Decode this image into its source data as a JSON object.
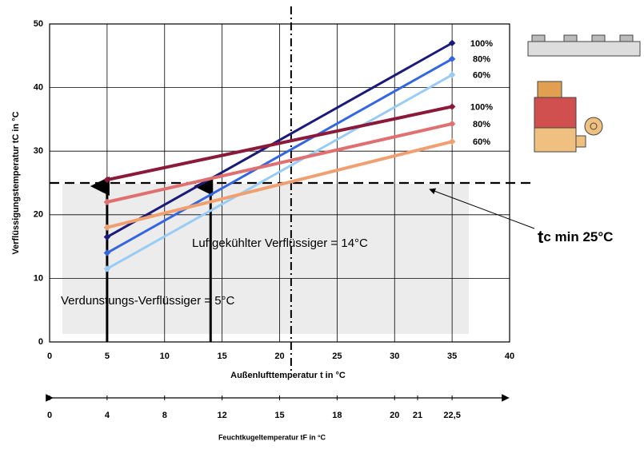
{
  "chart_data": {
    "type": "line",
    "y_label": "Verflüssigungstemperatur tC in °C",
    "x_label": "Außenlufttemperatur t in °C",
    "x": [
      5,
      35
    ],
    "series": [
      {
        "name": "100%",
        "color": "#1a1a7a",
        "values": [
          16.5,
          47
        ]
      },
      {
        "name": "80%",
        "color": "#3366e0",
        "values": [
          14,
          44.5
        ]
      },
      {
        "name": "60%",
        "color": "#99ccf5",
        "values": [
          11.5,
          42
        ]
      },
      {
        "name": "100%",
        "color": "#8b1a3a",
        "values": [
          25.5,
          37
        ]
      },
      {
        "name": "80%",
        "color": "#e07070",
        "values": [
          22,
          34.3
        ]
      },
      {
        "name": "60%",
        "color": "#f0a070",
        "values": [
          18,
          31.5
        ]
      }
    ],
    "xlim": [
      0,
      40
    ],
    "ylim": [
      0,
      50
    ],
    "xticks": [
      0,
      5,
      10,
      15,
      20,
      25,
      30,
      35,
      40
    ],
    "yticks": [
      0,
      10,
      20,
      30,
      40,
      50
    ],
    "grid": true,
    "tc_min": 25,
    "design_x": 21,
    "arrows_x": [
      5,
      14
    ],
    "annotations": [
      "Luftgekühlter Verflüssiger = 14°C",
      "Verdunstungs-Verflüssiger = 5°C"
    ],
    "tc_min_label": {
      "symbol": "t",
      "subscript": "c",
      "text": " min 25°C"
    },
    "x2_label": "Feuchtkugeltemperatur tF in °C",
    "x2ticks": [
      0,
      4,
      8,
      12,
      15,
      18,
      20,
      21,
      {
        "value": 22.5,
        "label": "22,5"
      }
    ],
    "x2_at": [
      0,
      5,
      10,
      15,
      20,
      25,
      30,
      32,
      35
    ]
  }
}
